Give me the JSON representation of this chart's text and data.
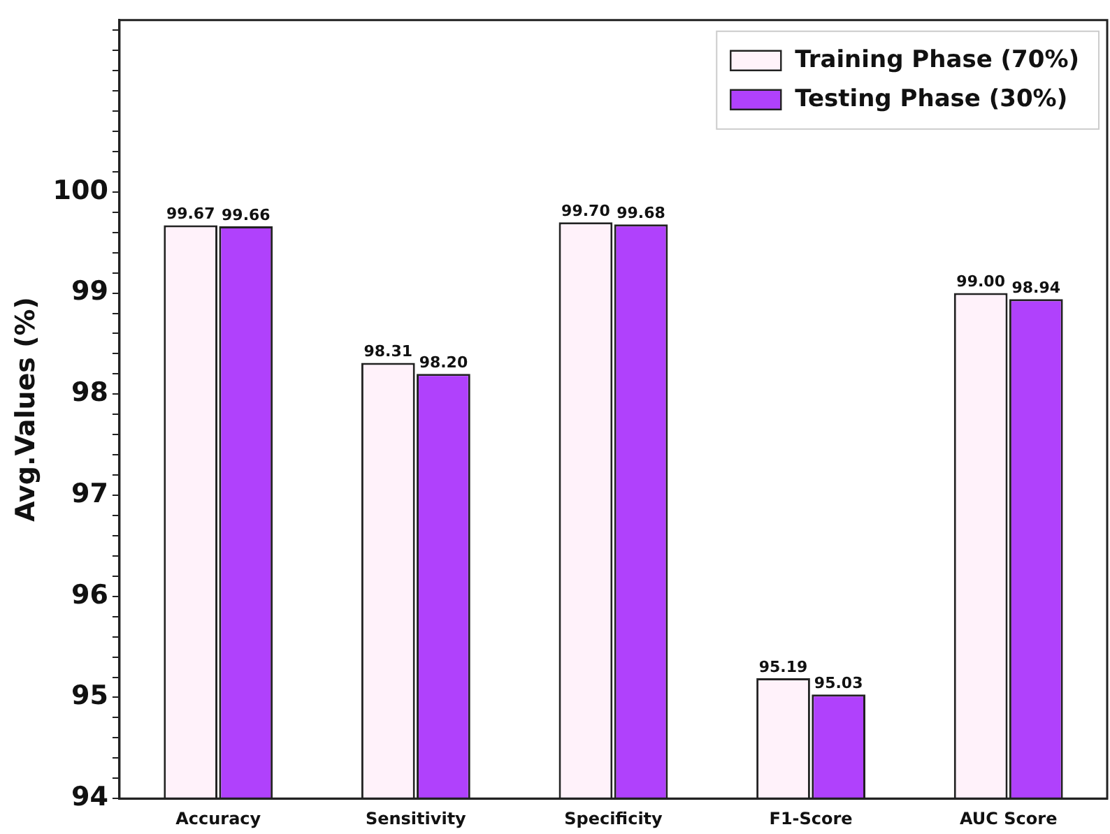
{
  "chart_data": {
    "type": "bar",
    "ylabel": "Avg.Values (%)",
    "categories": [
      "Accuracy",
      "Sensitivity",
      "Specificity",
      "F1-Score",
      "AUC Score"
    ],
    "series": [
      {
        "name": "Training Phase (70%)",
        "color": "#fff2fa",
        "values": [
          99.67,
          98.31,
          99.7,
          95.19,
          99.0
        ],
        "value_labels": [
          "99.67",
          "98.31",
          "99.70",
          "95.19",
          "99.00"
        ]
      },
      {
        "name": "Testing Phase (30%)",
        "color": "#b041fc",
        "values": [
          99.66,
          98.2,
          99.68,
          95.03,
          98.94
        ],
        "value_labels": [
          "99.66",
          "98.20",
          "99.68",
          "95.03",
          "98.94"
        ]
      }
    ],
    "ylim": [
      94,
      101.7
    ],
    "yticks": [
      94,
      {
        "value": 94.2,
        "label": null
      },
      {
        "value": 94.4,
        "label": null
      },
      {
        "value": 94.6,
        "label": null
      },
      {
        "value": 94.8,
        "label": null
      },
      95,
      {
        "value": 95.2,
        "label": null
      },
      {
        "value": 95.4,
        "label": null
      },
      {
        "value": 95.6,
        "label": null
      },
      {
        "value": 95.8,
        "label": null
      },
      96,
      {
        "value": 96.2,
        "label": null
      },
      {
        "value": 96.4,
        "label": null
      },
      {
        "value": 96.6,
        "label": null
      },
      {
        "value": 96.8,
        "label": null
      },
      97,
      {
        "value": 97.2,
        "label": null
      },
      {
        "value": 97.4,
        "label": null
      },
      {
        "value": 97.6,
        "label": null
      },
      {
        "value": 97.8,
        "label": null
      },
      98,
      {
        "value": 98.2,
        "label": null
      },
      {
        "value": 98.4,
        "label": null
      },
      {
        "value": 98.6,
        "label": null
      },
      {
        "value": 98.8,
        "label": null
      },
      99,
      {
        "value": 99.2,
        "label": null
      },
      {
        "value": 99.4,
        "label": null
      },
      {
        "value": 99.6,
        "label": null
      },
      {
        "value": 99.8,
        "label": null
      },
      100,
      {
        "value": 100.2,
        "label": null
      },
      {
        "value": 100.4,
        "label": null
      },
      {
        "value": 100.6,
        "label": null
      },
      {
        "value": 100.8,
        "label": null
      },
      {
        "value": 101.0,
        "label": null
      },
      {
        "value": 101.2,
        "label": null
      },
      {
        "value": 101.4,
        "label": null
      },
      {
        "value": 101.6,
        "label": null
      }
    ],
    "grid": false,
    "legend": "top right"
  }
}
